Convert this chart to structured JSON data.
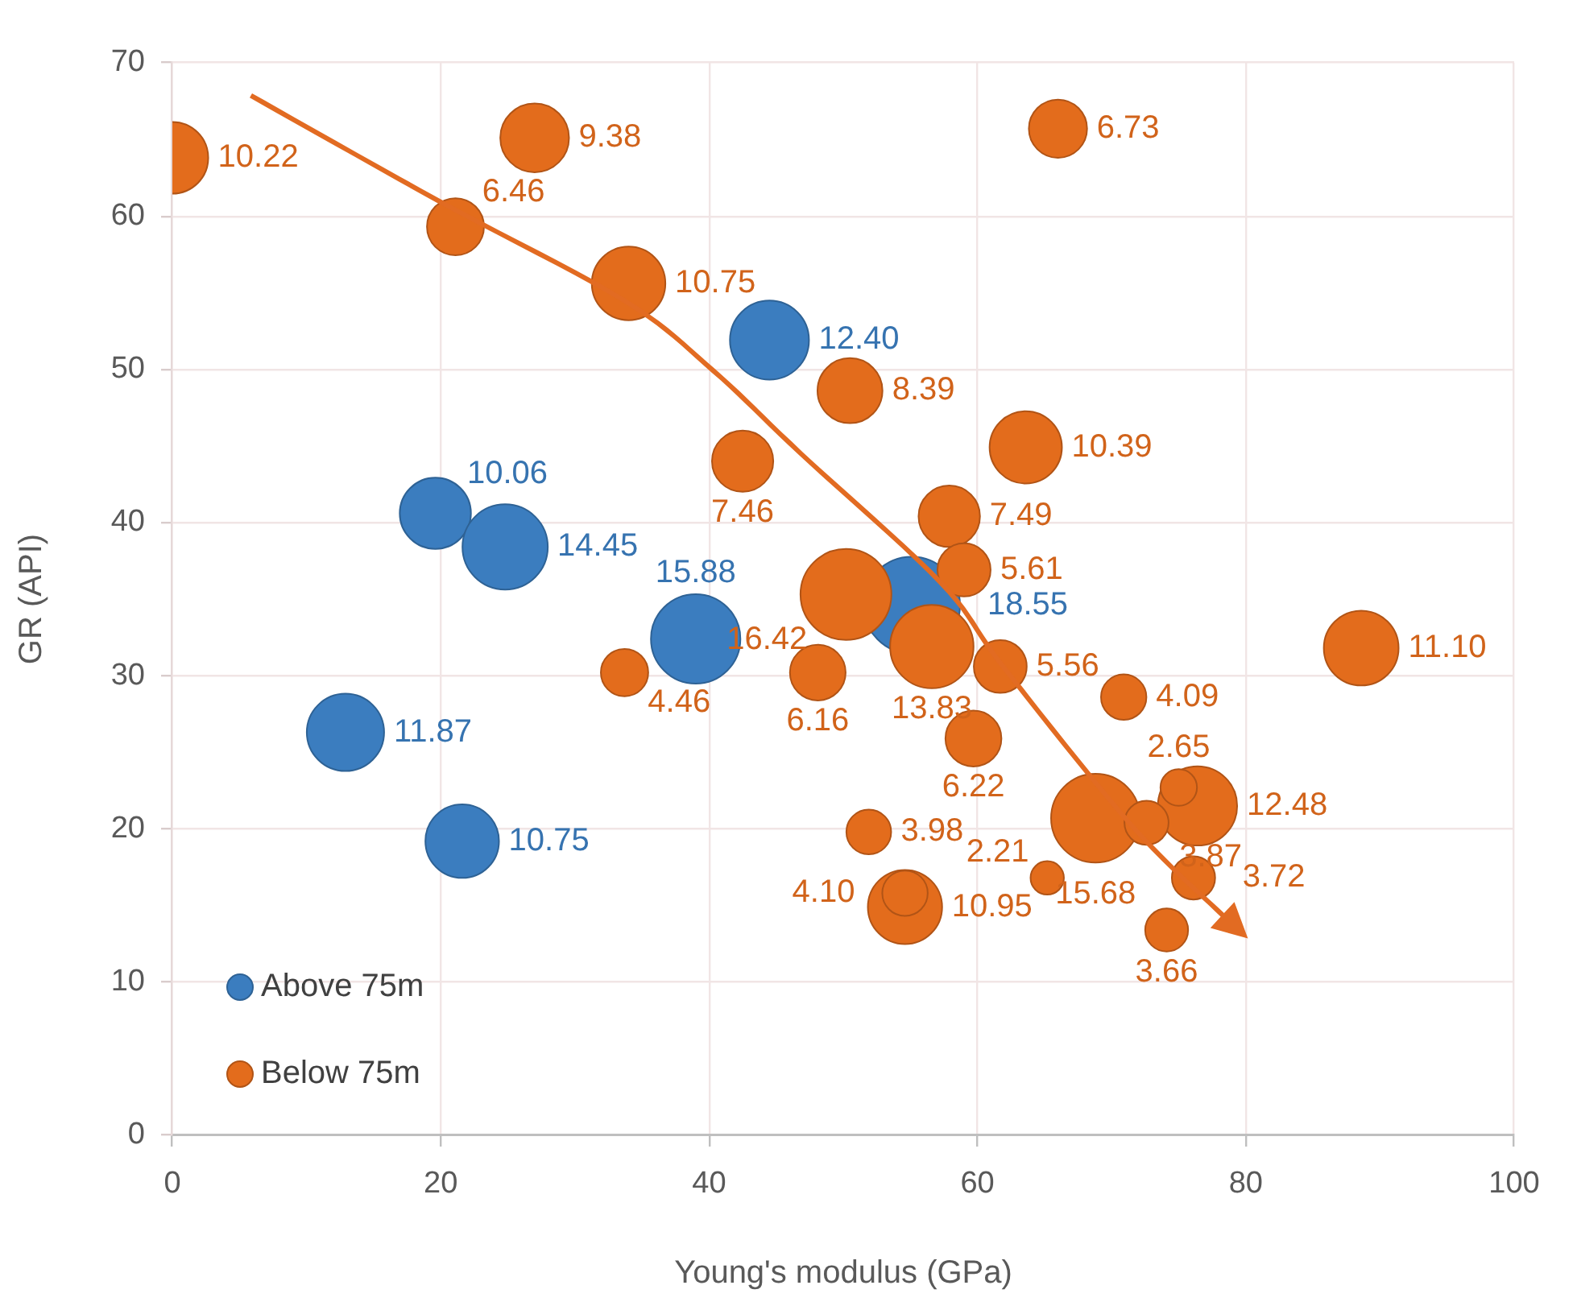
{
  "chart_data": {
    "type": "bubble",
    "xlabel": "Young's modulus (GPa)",
    "ylabel": "GR (API)",
    "xlim": [
      0,
      100
    ],
    "xticks": [
      0,
      20,
      40,
      60,
      80,
      100
    ],
    "ylim": [
      0,
      70
    ],
    "yticks": [
      0,
      10,
      20,
      30,
      40,
      50,
      60,
      70
    ],
    "grid": true,
    "legend": "bottom left",
    "series": [
      {
        "name": "Above 75m",
        "color": "#3b7dbf",
        "x": [
          44.5,
          19.6,
          24.8,
          39.0,
          55.1,
          12.9,
          21.6
        ],
        "values": [
          51.9,
          40.6,
          38.4,
          32.4,
          34.6,
          26.3,
          19.2
        ],
        "sizes": [
          12.4,
          10.06,
          14.45,
          15.88,
          18.55,
          11.87,
          10.75
        ],
        "value_labels": [
          "12.40",
          "10.06",
          "14.45",
          "15.88",
          "18.55",
          "11.87",
          "10.75"
        ]
      },
      {
        "name": "Below 75m",
        "color": "#e36c1c",
        "x": [
          0,
          27.0,
          21.1,
          34.0,
          66.0,
          50.5,
          42.5,
          63.6,
          57.9,
          59.0,
          50.2,
          56.6,
          61.7,
          70.9,
          48.1,
          33.7,
          59.7,
          88.6,
          51.9,
          54.6,
          54.6,
          68.8,
          76.4,
          75.0,
          72.6,
          65.2,
          76.1,
          74.1
        ],
        "values": [
          63.8,
          65.1,
          59.3,
          55.6,
          65.7,
          48.6,
          44.0,
          44.9,
          40.4,
          36.9,
          35.3,
          31.9,
          30.6,
          28.6,
          30.2,
          30.2,
          25.9,
          31.8,
          19.8,
          14.9,
          15.8,
          20.7,
          21.5,
          22.7,
          20.4,
          16.8,
          16.8,
          13.4
        ],
        "sizes": [
          10.22,
          9.38,
          6.46,
          10.75,
          6.73,
          8.39,
          7.46,
          10.39,
          7.49,
          5.61,
          16.42,
          13.83,
          5.56,
          4.09,
          6.16,
          4.46,
          6.22,
          11.1,
          3.98,
          10.95,
          4.1,
          15.68,
          12.48,
          2.65,
          3.87,
          2.21,
          3.72,
          3.66
        ],
        "value_labels": [
          "10.22",
          "9.38",
          "6.46",
          "10.75",
          "6.73",
          "8.39",
          "7.46",
          "10.39",
          "7.49",
          "5.61",
          "16.42",
          "13.83",
          "5.56",
          "4.09",
          "6.16",
          "4.46",
          "6.22",
          "11.10",
          "3.98",
          "10.95",
          "4.10",
          "15.68",
          "12.48",
          "2.65",
          "3.87",
          "2.21",
          "3.72",
          "3.66"
        ]
      }
    ]
  }
}
